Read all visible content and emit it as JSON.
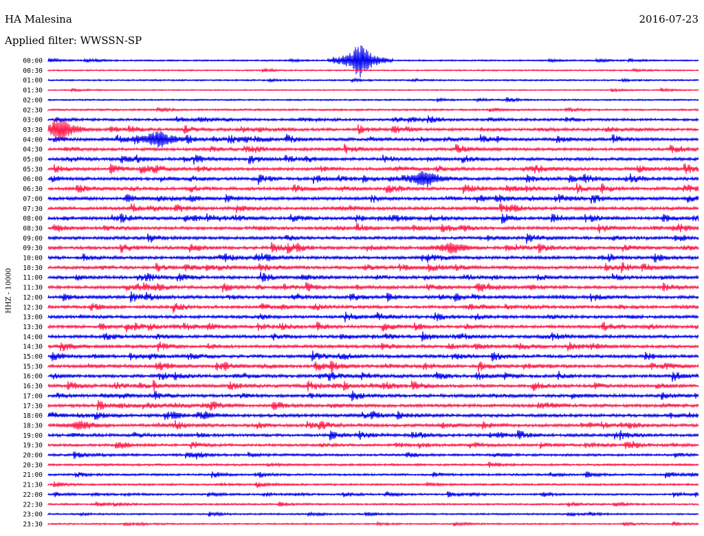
{
  "header": {
    "station": "HA Malesina",
    "date": "2016-07-23",
    "filter": "Applied filter: WWSSN-SP",
    "channel": "HHZ - 10000"
  },
  "colors": {
    "blue": "#0000ee",
    "red": "#ff1a4a"
  },
  "chart_data": {
    "type": "line",
    "title": "HA Malesina",
    "subtitle": "Applied filter: WWSSN-SP",
    "ylabel": "HHZ - 10000",
    "time_labels": [
      "00:00",
      "00:30",
      "01:00",
      "01:30",
      "02:00",
      "02:30",
      "03:00",
      "03:30",
      "04:00",
      "04:30",
      "05:00",
      "05:30",
      "06:00",
      "06:30",
      "07:00",
      "07:30",
      "08:00",
      "08:30",
      "09:00",
      "09:30",
      "10:00",
      "10:30",
      "11:00",
      "11:30",
      "12:00",
      "12:30",
      "13:00",
      "13:30",
      "14:00",
      "14:30",
      "15:00",
      "15:30",
      "16:00",
      "16:30",
      "17:00",
      "17:30",
      "18:00",
      "18:30",
      "19:00",
      "19:30",
      "20:00",
      "20:30",
      "21:00",
      "21:30",
      "22:00",
      "22:30",
      "23:00",
      "23:30"
    ],
    "trace_colors": [
      "blue",
      "red"
    ],
    "noise_level": [
      0.25,
      0.2,
      0.3,
      0.15,
      0.3,
      0.45,
      0.7,
      0.85,
      0.9,
      0.9,
      0.95,
      1.0,
      1.0,
      1.0,
      1.0,
      1.0,
      1.0,
      1.0,
      1.0,
      1.0,
      1.0,
      1.0,
      1.0,
      1.0,
      1.0,
      0.95,
      0.95,
      0.95,
      0.95,
      1.0,
      1.0,
      1.0,
      1.0,
      1.0,
      1.0,
      1.0,
      1.0,
      1.0,
      0.9,
      0.75,
      0.65,
      0.55,
      0.55,
      0.5,
      0.45,
      0.4,
      0.35,
      0.3
    ],
    "events": [
      {
        "label": "00:00",
        "fraction": 0.48,
        "amplitude": 1.0
      },
      {
        "label": "03:30",
        "fraction": 0.02,
        "amplitude": 0.55
      },
      {
        "label": "04:00",
        "fraction": 0.17,
        "amplitude": 0.5
      },
      {
        "label": "06:00",
        "fraction": 0.58,
        "amplitude": 0.45
      },
      {
        "label": "09:30",
        "fraction": 0.62,
        "amplitude": 0.3
      },
      {
        "label": "18:30",
        "fraction": 0.05,
        "amplitude": 0.2
      }
    ]
  }
}
